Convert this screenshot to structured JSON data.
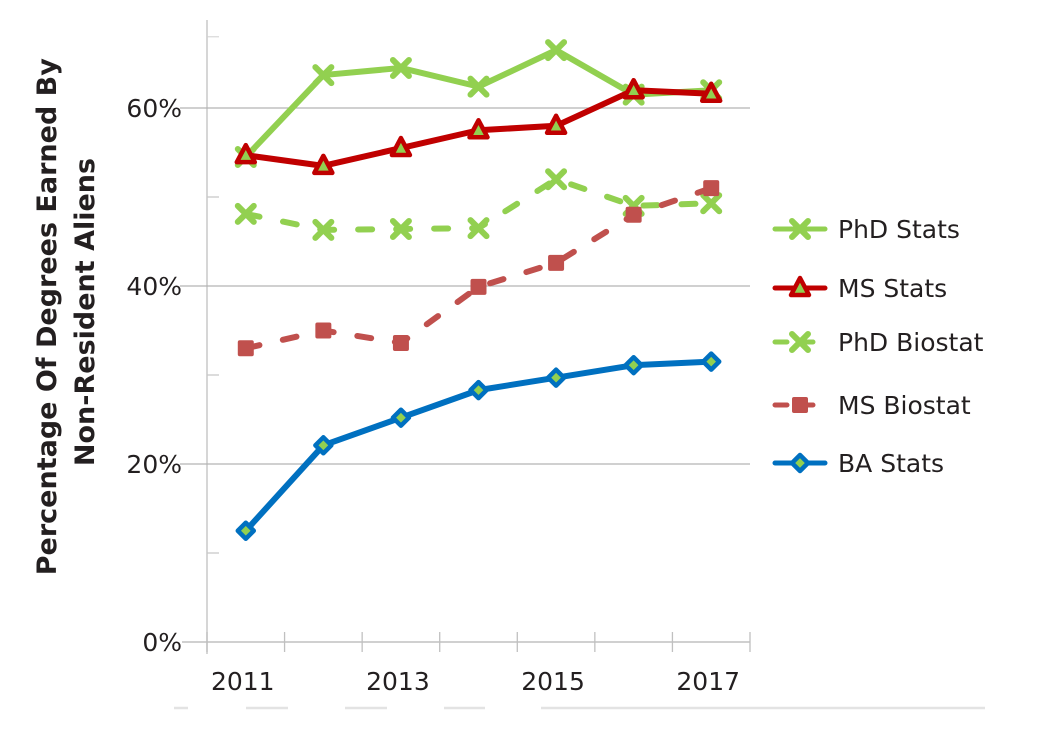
{
  "chart_data": {
    "type": "line",
    "title": "",
    "xlabel": "",
    "ylabel": "Percentage Of Degrees Earned By Non-Resident Aliens",
    "ylabel_lines": [
      "Percentage Of Degrees Earned By",
      "Non-Resident Aliens"
    ],
    "x": [
      2011,
      2012,
      2013,
      2014,
      2015,
      2016,
      2017
    ],
    "x_tick_labels": [
      "2011",
      "2013",
      "2015",
      "2017"
    ],
    "y_tick_labels": [
      "0%",
      "20%",
      "40%",
      "60%"
    ],
    "ylim": [
      0,
      70
    ],
    "grid": true,
    "legend_position": "right",
    "series": [
      {
        "name": "PhD Stats",
        "color": "#92d050",
        "dash": false,
        "marker": "x",
        "values": [
          54.5,
          63.7,
          64.5,
          62.4,
          66.5,
          61.5,
          62.0
        ]
      },
      {
        "name": "MS Stats",
        "color": "#c00000",
        "dash": false,
        "marker": "triangle",
        "values": [
          54.7,
          53.5,
          55.5,
          57.5,
          58.0,
          62.0,
          61.6
        ]
      },
      {
        "name": "PhD Biostat",
        "color": "#92d050",
        "dash": true,
        "marker": "x",
        "values": [
          48.1,
          46.3,
          46.4,
          46.5,
          52.0,
          49.0,
          49.3
        ]
      },
      {
        "name": "MS Biostat",
        "color": "#c0504d",
        "dash": true,
        "marker": "square",
        "values": [
          33.0,
          35.0,
          33.6,
          39.9,
          42.6,
          48.0,
          51.0
        ]
      },
      {
        "name": "BA Stats",
        "color": "#0070c0",
        "dash": false,
        "marker": "diamond",
        "values": [
          12.5,
          22.1,
          25.2,
          28.3,
          29.7,
          31.1,
          31.5
        ]
      }
    ]
  }
}
